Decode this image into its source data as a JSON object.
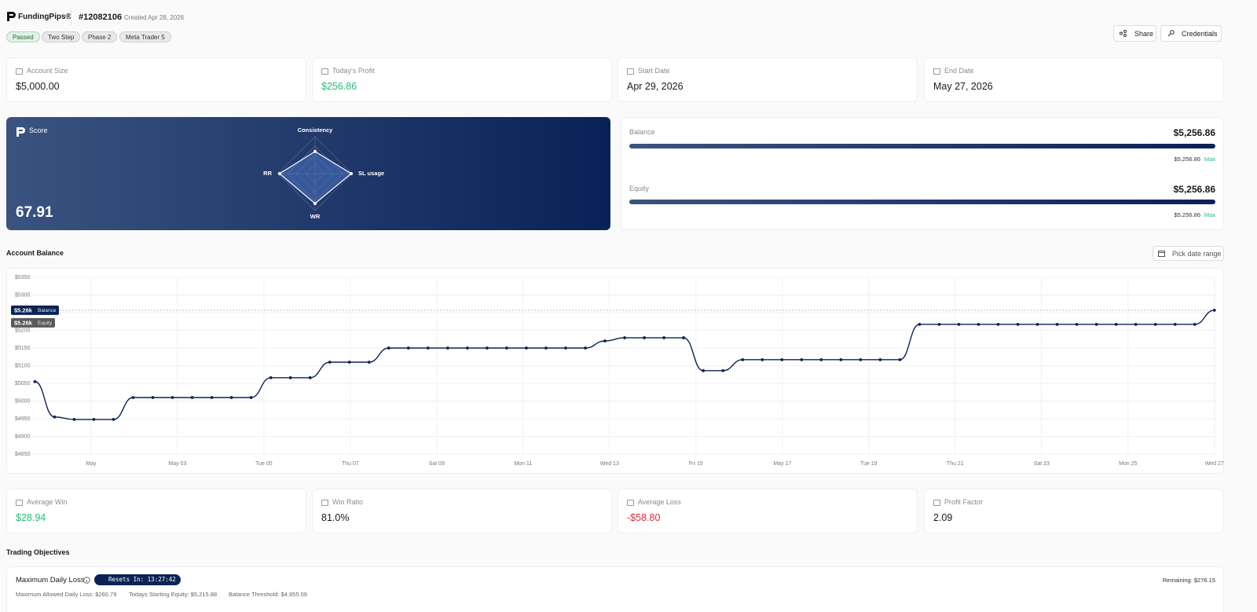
{
  "header": {
    "brand": "FundingPips®",
    "account_id": "#12082106",
    "created": "Created Apr 28, 2026",
    "tags": [
      "Passed",
      "Two Step",
      "Phase 2",
      "Meta Trader 5"
    ],
    "actions": [
      "Share",
      "Credentials"
    ]
  },
  "stats": [
    {
      "label": "Account Size",
      "value": "$5,000.00"
    },
    {
      "label": "Today's Profit",
      "value": "$256.86"
    },
    {
      "label": "Start Date",
      "value": "Apr 29, 2026"
    },
    {
      "label": "End Date",
      "value": "May 27, 2026"
    }
  ],
  "score": {
    "title": "Score",
    "value": "67.91"
  },
  "balance_panel": [
    {
      "label": "Balance",
      "value": "$5,256.86",
      "max_value": "$5,256.86",
      "max_label": "Max"
    },
    {
      "label": "Equity",
      "value": "$5,256.86",
      "max_value": "$5,256.86",
      "max_label": "Max"
    }
  ],
  "account_balance_title": "Account Balance",
  "date_button": "Pick date range",
  "chart_data": [
    {
      "type": "radar",
      "categories": [
        "Consistency",
        "SL usage",
        "WR",
        "RR"
      ],
      "values": [
        60,
        98,
        81,
        96
      ],
      "rlim": [
        0,
        100
      ],
      "rticks": [
        25,
        50,
        75,
        100
      ],
      "color": "#4a72c0"
    },
    {
      "type": "line",
      "color": "#0b2354",
      "x": [
        -0.3,
        0.155,
        0.61,
        1.065,
        1.52,
        1.975,
        2.43,
        2.885,
        3.34,
        3.795,
        4.25,
        4.705,
        5.16,
        5.615,
        6.07,
        6.525,
        6.98,
        7.435,
        7.89,
        8.345,
        8.8,
        9.255,
        9.71,
        10.165,
        10.62,
        11.075,
        11.53,
        11.985,
        12.44,
        12.895,
        13.35,
        13.805,
        14.26,
        14.715,
        15.17,
        15.625,
        16.08,
        16.535,
        16.99,
        17.445,
        17.9,
        18.355,
        18.81,
        19.265,
        19.72,
        20.175,
        20.63,
        21.085,
        21.54,
        21.995,
        22.45,
        22.905,
        23.36,
        23.815,
        24.27,
        24.725,
        25.18,
        25.635,
        26.09,
        26.545,
        27.0
      ],
      "values": [
        5055,
        4955,
        4948,
        4948,
        4948,
        5010,
        5010,
        5010,
        5010,
        5010,
        5010,
        5010,
        5066,
        5066,
        5066,
        5110,
        5110,
        5110,
        5150,
        5150,
        5150,
        5150,
        5150,
        5150,
        5150,
        5150,
        5150,
        5150,
        5150,
        5170,
        5179,
        5179,
        5179,
        5179,
        5086,
        5086,
        5117,
        5117,
        5117,
        5117,
        5117,
        5117,
        5117,
        5117,
        5117,
        5217,
        5217,
        5217,
        5217,
        5217,
        5217,
        5217,
        5217,
        5217,
        5217,
        5217,
        5217,
        5217,
        5217,
        5217,
        5256.86
      ],
      "xlim": [
        -0.38,
        27.04
      ],
      "xticks": [
        {
          "value": 1,
          "label": "May"
        },
        {
          "value": 3,
          "label": "May 03"
        },
        {
          "value": 5,
          "label": "Tue 05"
        },
        {
          "value": 7,
          "label": "Thu 07"
        },
        {
          "value": 9,
          "label": "Sat 09"
        },
        {
          "value": 11,
          "label": "Mon 11"
        },
        {
          "value": 13,
          "label": "Wed 13"
        },
        {
          "value": 15,
          "label": "Fri 15"
        },
        {
          "value": 17,
          "label": "May 17"
        },
        {
          "value": 19,
          "label": "Tue 19"
        },
        {
          "value": 21,
          "label": "Thu 21"
        },
        {
          "value": 23,
          "label": "Sat 23"
        },
        {
          "value": 25,
          "label": "Mon 25"
        },
        {
          "value": 27,
          "label": "Wed 27"
        }
      ],
      "ylim": [
        4850,
        5350
      ],
      "yticks": [
        {
          "value": 4850,
          "label": "$4850"
        },
        {
          "value": 4900,
          "label": "$4900"
        },
        {
          "value": 4950,
          "label": "$4950"
        },
        {
          "value": 5000,
          "label": "$5000"
        },
        {
          "value": 5050,
          "label": "$5050"
        },
        {
          "value": 5100,
          "label": "$5100"
        },
        {
          "value": 5150,
          "label": "$5150"
        },
        {
          "value": 5200,
          "label": "$5200"
        },
        {
          "value": 5250,
          "label": "$5250"
        },
        {
          "value": 5300,
          "label": "$5300"
        },
        {
          "value": 5350,
          "label": "$5350"
        }
      ],
      "grid": true,
      "reference_lines": [
        {
          "name": "Balance",
          "value": 5256.86,
          "label": "$5.26k",
          "color": "#0b2354"
        },
        {
          "name": "Equity",
          "value": 5256.86,
          "label": "$5.26k",
          "color": "#5a5a5a"
        }
      ]
    }
  ],
  "metrics": [
    {
      "label": "Average Win",
      "value": "$28.94"
    },
    {
      "label": "Win Ratio",
      "value": "81.0%"
    },
    {
      "label": "Average Loss",
      "value": "-$58.80"
    },
    {
      "label": "Profit Factor",
      "value": "2.09"
    }
  ],
  "objectives_title": "Trading Objectives",
  "objective": {
    "title": "Maximum Daily Loss",
    "timer": "Resets In: 13:27:42",
    "remaining": "Remaining: $276.15",
    "details": [
      "Maximum Allowed Daily Loss: $260.79",
      "Todays Starting Equity: $5,215.88",
      "Balance Threshold: $4,955.09"
    ]
  }
}
